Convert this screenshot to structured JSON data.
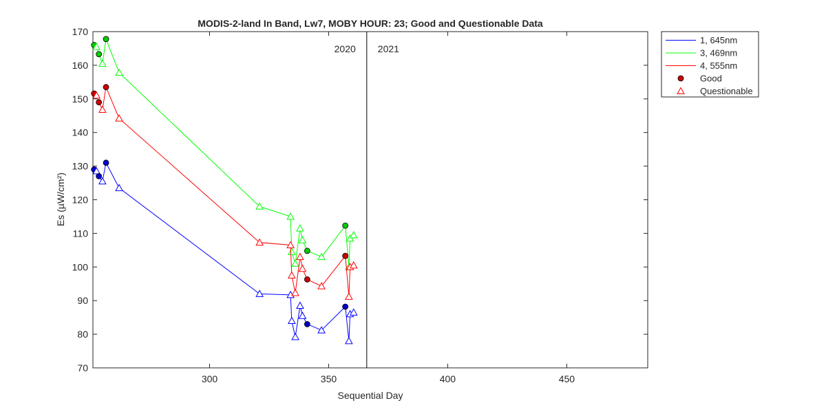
{
  "chart_data": {
    "type": "line",
    "title": "MODIS-2-land In Band,  Lw7, MOBY HOUR: 23;  Good and Questionable Data",
    "xlabel": "Sequential Day",
    "ylabel": "Es (µW/cm²)",
    "xlim": [
      251,
      484
    ],
    "ylim": [
      70,
      170
    ],
    "xticks": [
      300,
      350,
      400,
      450
    ],
    "yticks": [
      70,
      80,
      90,
      100,
      110,
      120,
      130,
      140,
      150,
      160,
      170
    ],
    "grid": false,
    "legend_position": "outside-top-right",
    "year_divider": {
      "x": 366,
      "labels": [
        "2020",
        "2021"
      ]
    },
    "marker_legend": [
      {
        "label": "Good",
        "marker": "circle"
      },
      {
        "label": "Questionable",
        "marker": "triangle"
      }
    ],
    "x": [
      251.5,
      252.5,
      253.5,
      255,
      256.5,
      262,
      321,
      334,
      334.5,
      336,
      338,
      339,
      341,
      347,
      357,
      358.5,
      359,
      360.5
    ],
    "quality": [
      "Good",
      "Questionable",
      "Good",
      "Questionable",
      "Good",
      "Questionable",
      "Questionable",
      "Questionable",
      "Questionable",
      "Questionable",
      "Questionable",
      "Questionable",
      "Good",
      "Questionable",
      "Good",
      "Questionable",
      "Questionable",
      "Questionable"
    ],
    "series": [
      {
        "name": "1, 645nm",
        "color": "#0000ff",
        "fill_good": "#0000cc",
        "values": [
          129.0,
          128.5,
          127.0,
          125.5,
          131.0,
          123.5,
          92.0,
          91.7,
          84.0,
          79.2,
          88.5,
          85.5,
          83.0,
          81.2,
          88.2,
          78.0,
          86.0,
          86.5
        ]
      },
      {
        "name": "3, 469nm",
        "color": "#00ff00",
        "fill_good": "#00cc00",
        "values": [
          166.0,
          165.5,
          163.3,
          160.5,
          167.8,
          157.8,
          118.0,
          115.0,
          104.5,
          101.0,
          111.5,
          108.0,
          104.8,
          103.0,
          112.3,
          100.0,
          108.5,
          109.5
        ]
      },
      {
        "name": "4, 555nm",
        "color": "#ff0000",
        "fill_good": "#cc0000",
        "values": [
          151.6,
          151.0,
          149.0,
          146.8,
          153.5,
          144.2,
          107.3,
          106.5,
          97.5,
          92.3,
          103.0,
          99.5,
          96.3,
          94.3,
          103.3,
          91.2,
          100.0,
          100.5
        ]
      }
    ]
  }
}
